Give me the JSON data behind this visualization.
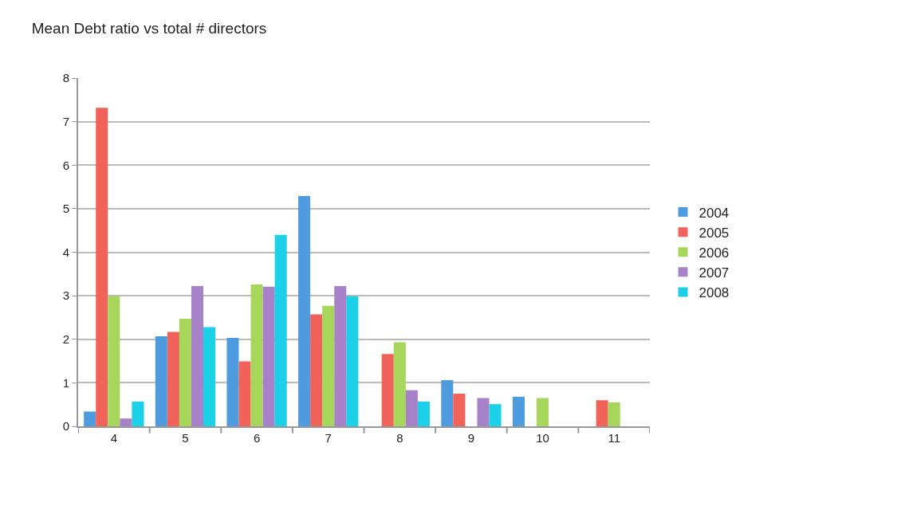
{
  "chart_data": {
    "type": "bar",
    "title": "Mean Debt ratio vs total # directors",
    "categories": [
      "4",
      "5",
      "6",
      "7",
      "8",
      "9",
      "10",
      "11"
    ],
    "series": [
      {
        "name": "2004",
        "color": "#4f9be0",
        "values": [
          0.34,
          2.07,
          2.03,
          5.29,
          null,
          1.06,
          0.68,
          null
        ]
      },
      {
        "name": "2005",
        "color": "#f0625a",
        "values": [
          7.32,
          2.17,
          1.49,
          2.57,
          1.66,
          0.75,
          null,
          0.6
        ]
      },
      {
        "name": "2006",
        "color": "#a6d65a",
        "values": [
          2.99,
          2.47,
          3.26,
          2.77,
          1.93,
          null,
          0.65,
          0.55
        ]
      },
      {
        "name": "2007",
        "color": "#a882c8",
        "values": [
          0.18,
          3.22,
          3.21,
          3.22,
          0.83,
          0.65,
          null,
          null
        ]
      },
      {
        "name": "2008",
        "color": "#1cd0e8",
        "values": [
          0.57,
          2.28,
          4.4,
          2.99,
          0.57,
          0.51,
          null,
          null
        ]
      }
    ],
    "ylim": [
      0,
      8
    ],
    "yticks": [
      0,
      1,
      2,
      3,
      4,
      5,
      6,
      7,
      8
    ],
    "grid": "y",
    "legend": "right"
  }
}
